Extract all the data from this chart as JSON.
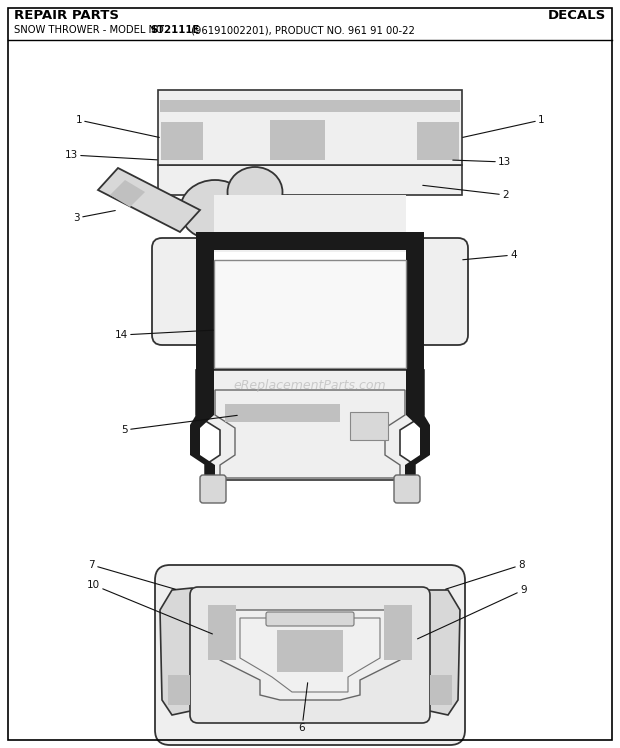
{
  "title_left": "REPAIR PARTS",
  "title_right": "DECALS",
  "subtitle_prefix": "SNOW THROWER - MODEL NO. ",
  "subtitle_bold": "ST2111E",
  "subtitle_suffix": " (96191002201), PRODUCT NO. 961 91 00-22",
  "watermark": "eReplacementParts.com",
  "bg_color": "#ffffff",
  "gray_fill": "#d8d8d8",
  "decal_fill": "#c0c0c0",
  "black_frame": "#1a1a1a",
  "outline_color": "#333333",
  "light_fill": "#efefef"
}
